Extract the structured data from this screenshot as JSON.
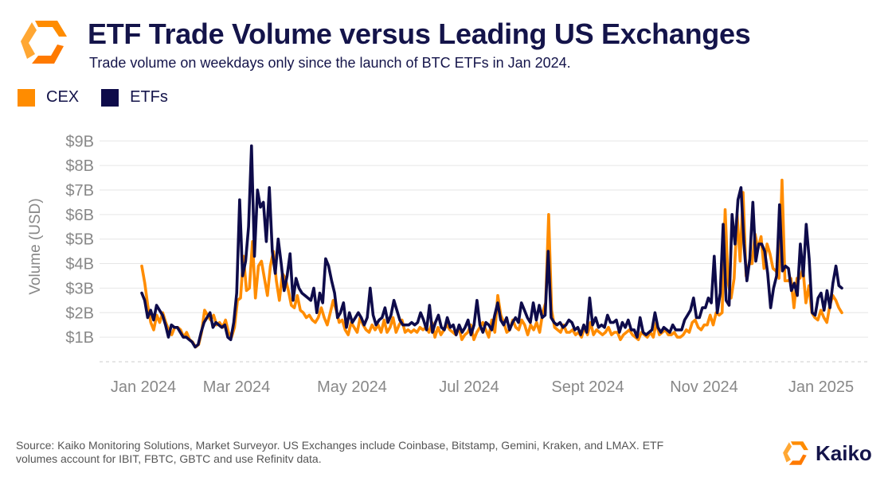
{
  "header": {
    "title": "ETF Trade Volume versus Leading US Exchanges",
    "subtitle": "Trade volume on weekdays only since the launch of BTC ETFs in Jan 2024."
  },
  "colors": {
    "cex": "#FF8C00",
    "etf": "#0E0B4A",
    "grid": "#e6e6e6",
    "axis_text": "#888888"
  },
  "legend": [
    {
      "label": "CEX",
      "color": "#FF8C00"
    },
    {
      "label": "ETFs",
      "color": "#0E0B4A"
    }
  ],
  "chart_data": {
    "type": "line",
    "ylabel": "Volume (USD)",
    "ylim": [
      0,
      9.3
    ],
    "y_ticks": [
      {
        "value": 1,
        "label": "$1B"
      },
      {
        "value": 2,
        "label": "$2B"
      },
      {
        "value": 3,
        "label": "$3B"
      },
      {
        "value": 4,
        "label": "$4B"
      },
      {
        "value": 5,
        "label": "$5B"
      },
      {
        "value": 6,
        "label": "$6B"
      },
      {
        "value": 7,
        "label": "$7B"
      },
      {
        "value": 8,
        "label": "$8B"
      },
      {
        "value": 9,
        "label": "$9B"
      }
    ],
    "x_ticks": [
      "Jan 2024",
      "Mar 2024",
      "May 2024",
      "Jul 2024",
      "Sept 2024",
      "Nov 2024",
      "Jan 2025"
    ],
    "series": [
      {
        "name": "CEX",
        "values": [
          3.9,
          3.2,
          2.3,
          1.6,
          1.3,
          1.9,
          1.6,
          2.0,
          1.6,
          1.3,
          1.1,
          1.4,
          1.4,
          1.3,
          1.0,
          1.2,
          0.9,
          0.8,
          0.6,
          0.7,
          1.2,
          2.1,
          1.9,
          1.7,
          1.9,
          1.5,
          1.6,
          1.4,
          1.7,
          1.2,
          1.0,
          1.4,
          2.5,
          2.6,
          4.3,
          2.9,
          3.0,
          4.9,
          2.6,
          3.9,
          4.1,
          3.4,
          2.7,
          3.9,
          4.5,
          3.3,
          2.5,
          3.6,
          3.4,
          2.9,
          2.3,
          2.2,
          2.7,
          2.1,
          2.0,
          1.8,
          1.9,
          1.7,
          1.6,
          1.8,
          2.2,
          1.8,
          1.5,
          2.0,
          2.5,
          2.1,
          1.6,
          1.7,
          1.3,
          1.1,
          1.6,
          1.4,
          1.2,
          1.8,
          1.5,
          1.3,
          1.2,
          1.5,
          1.3,
          1.5,
          1.2,
          1.7,
          1.2,
          1.4,
          1.8,
          1.2,
          1.5,
          1.7,
          1.2,
          1.3,
          1.2,
          1.3,
          1.2,
          1.4,
          1.3,
          1.4,
          1.2,
          1.6,
          1.0,
          1.4,
          1.1,
          1.3,
          1.5,
          1.3,
          1.2,
          1.1,
          1.4,
          0.9,
          1.1,
          1.2,
          1.5,
          0.9,
          1.2,
          1.4,
          1.6,
          1.3,
          1.0,
          1.7,
          1.2,
          2.7,
          1.9,
          1.6,
          1.2,
          1.3,
          1.7,
          1.4,
          1.3,
          1.7,
          1.5,
          1.1,
          1.5,
          1.3,
          1.6,
          1.2,
          2.0,
          2.4,
          6.0,
          2.1,
          1.4,
          1.3,
          1.2,
          1.5,
          1.2,
          1.2,
          1.3,
          1.1,
          1.2,
          1.0,
          1.4,
          1.1,
          1.6,
          1.1,
          1.3,
          1.2,
          1.1,
          1.2,
          1.4,
          1.1,
          1.2,
          1.2,
          0.9,
          1.1,
          1.2,
          1.3,
          1.1,
          1.0,
          0.9,
          1.2,
          1.1,
          1.0,
          1.2,
          1.0,
          1.6,
          1.1,
          1.2,
          1.3,
          1.1,
          1.1,
          1.2,
          1.0,
          1.0,
          1.1,
          1.3,
          1.2,
          1.6,
          1.7,
          1.4,
          1.3,
          1.5,
          1.5,
          1.9,
          1.5,
          2.0,
          1.9,
          2.0,
          6.2,
          3.2,
          2.6,
          3.4,
          6.0,
          4.1,
          6.9,
          3.5,
          4.0,
          4.0,
          5.2,
          4.6,
          5.1,
          3.8,
          4.8,
          4.4,
          3.8,
          3.7,
          3.4,
          7.4,
          3.3,
          3.3,
          3.4,
          2.2,
          3.4,
          3.4,
          3.8,
          2.4,
          3.1,
          2.0,
          1.8,
          1.7,
          2.1,
          1.8,
          1.6,
          2.3,
          2.7,
          2.5,
          2.2,
          2.0
        ]
      },
      {
        "name": "ETFs",
        "values": [
          2.8,
          2.5,
          1.8,
          2.1,
          1.7,
          2.3,
          2.1,
          1.9,
          1.5,
          1.0,
          1.5,
          1.4,
          1.4,
          1.2,
          1.0,
          1.0,
          0.9,
          0.8,
          0.6,
          0.7,
          1.2,
          1.6,
          1.8,
          2.0,
          1.4,
          1.6,
          1.5,
          1.4,
          1.5,
          1.0,
          0.9,
          1.6,
          2.8,
          6.6,
          3.5,
          4.1,
          5.5,
          8.8,
          4.3,
          7.0,
          6.3,
          6.5,
          4.9,
          7.1,
          4.5,
          3.6,
          5.0,
          4.0,
          2.9,
          3.5,
          4.4,
          2.5,
          3.4,
          3.0,
          2.8,
          2.7,
          2.6,
          2.5,
          3.0,
          2.0,
          2.8,
          2.4,
          4.2,
          3.9,
          3.3,
          2.8,
          1.8,
          2.0,
          2.4,
          1.4,
          2.0,
          1.6,
          1.8,
          2.0,
          1.8,
          1.5,
          1.8,
          3.0,
          1.9,
          1.5,
          1.7,
          1.8,
          2.2,
          1.6,
          1.9,
          2.5,
          2.1,
          1.7,
          1.5,
          1.5,
          1.5,
          1.6,
          1.5,
          1.6,
          2.0,
          1.7,
          1.3,
          2.3,
          1.2,
          1.6,
          1.9,
          1.4,
          1.3,
          1.8,
          1.4,
          1.5,
          1.1,
          1.5,
          1.2,
          1.4,
          1.7,
          1.1,
          1.5,
          2.5,
          1.5,
          1.2,
          1.6,
          1.5,
          1.3,
          1.9,
          2.4,
          1.7,
          1.5,
          1.8,
          1.3,
          1.6,
          1.8,
          1.6,
          2.4,
          2.1,
          1.8,
          1.6,
          2.4,
          1.7,
          2.3,
          1.8,
          1.9,
          4.5,
          1.8,
          1.6,
          1.5,
          1.6,
          1.4,
          1.5,
          1.7,
          1.6,
          1.3,
          1.4,
          1.1,
          1.5,
          1.2,
          2.6,
          1.5,
          1.8,
          1.4,
          1.5,
          1.4,
          1.9,
          1.6,
          1.6,
          1.7,
          1.2,
          1.6,
          1.4,
          1.7,
          1.3,
          1.3,
          1.0,
          1.8,
          1.2,
          1.1,
          1.2,
          1.3,
          2.0,
          1.4,
          1.2,
          1.4,
          1.3,
          1.2,
          1.5,
          1.3,
          1.3,
          1.3,
          1.7,
          1.9,
          2.1,
          2.6,
          1.8,
          1.8,
          2.2,
          2.2,
          2.6,
          2.4,
          4.3,
          2.0,
          2.8,
          5.6,
          2.5,
          2.3,
          6.0,
          4.8,
          6.6,
          7.1,
          4.8,
          3.3,
          4.2,
          6.5,
          4.1,
          4.8,
          4.8,
          4.5,
          3.6,
          2.2,
          3.0,
          3.5,
          6.4,
          3.7,
          3.9,
          3.8,
          2.9,
          3.2,
          2.7,
          4.8,
          3.5,
          5.6,
          4.2,
          2.0,
          1.9,
          2.6,
          2.8,
          2.1,
          2.9,
          2.2,
          3.2,
          3.9,
          3.1,
          3.0
        ]
      }
    ]
  },
  "footer": {
    "source_line1": "Source: Kaiko Monitoring Solutions, Market Surveyor. US Exchanges include Coinbase, Bitstamp, Gemini, Kraken, and LMAX. ETF",
    "source_line2": "volumes account for IBIT, FBTC, GBTC and use Refinitv data.",
    "brand": "Kaiko"
  }
}
